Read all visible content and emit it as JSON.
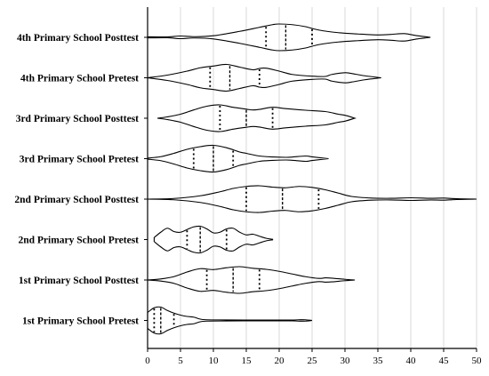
{
  "chart_data": {
    "type": "violin",
    "orientation": "horizontal",
    "grid": true,
    "xlim": [
      0,
      50
    ],
    "xticks": [
      0,
      5,
      10,
      15,
      20,
      25,
      30,
      35,
      40,
      45,
      50
    ],
    "categories": [
      "4th Primary School Posttest",
      "4th Primary School Pretest",
      "3rd Primary School Posttest",
      "3rd Primary School Pretest",
      "2nd Primary School Posttest",
      "2nd Primary School Pretest",
      "1st Primary School Posttest",
      "1st Primary School Pretest"
    ],
    "violins": [
      {
        "category": "4th Primary School Posttest",
        "min": 0,
        "max": 43,
        "q1": 18,
        "median": 21,
        "q3": 25,
        "density": [
          [
            0,
            0.04
          ],
          [
            3,
            0.03
          ],
          [
            5,
            0.1
          ],
          [
            7,
            0.05
          ],
          [
            10,
            0.12
          ],
          [
            14,
            0.45
          ],
          [
            17,
            0.75
          ],
          [
            19,
            0.95
          ],
          [
            20,
            1.0
          ],
          [
            22,
            0.95
          ],
          [
            24,
            0.8
          ],
          [
            26,
            0.55
          ],
          [
            29,
            0.35
          ],
          [
            32,
            0.25
          ],
          [
            35,
            0.18
          ],
          [
            37,
            0.22
          ],
          [
            39,
            0.28
          ],
          [
            41,
            0.12
          ],
          [
            43,
            0
          ]
        ]
      },
      {
        "category": "4th Primary School Pretest",
        "min": 0,
        "max": 35.5,
        "q1": 9.5,
        "median": 12.5,
        "q3": 17,
        "density": [
          [
            0,
            0
          ],
          [
            3,
            0.2
          ],
          [
            6,
            0.5
          ],
          [
            8,
            0.75
          ],
          [
            10,
            0.88
          ],
          [
            12,
            1.0
          ],
          [
            14,
            0.8
          ],
          [
            16,
            0.6
          ],
          [
            17,
            0.7
          ],
          [
            18,
            0.72
          ],
          [
            20,
            0.5
          ],
          [
            22,
            0.25
          ],
          [
            25,
            0.12
          ],
          [
            27,
            0.1
          ],
          [
            28,
            0.25
          ],
          [
            30,
            0.38
          ],
          [
            31,
            0.32
          ],
          [
            33,
            0.15
          ],
          [
            35.5,
            0
          ]
        ]
      },
      {
        "category": "3rd Primary School Posttest",
        "min": 1.5,
        "max": 31.5,
        "q1": 11,
        "median": 15,
        "q3": 19,
        "density": [
          [
            1.5,
            0
          ],
          [
            3,
            0.1
          ],
          [
            5,
            0.3
          ],
          [
            7,
            0.62
          ],
          [
            9,
            0.9
          ],
          [
            11,
            1.0
          ],
          [
            13,
            0.82
          ],
          [
            15,
            0.68
          ],
          [
            16,
            0.62
          ],
          [
            17,
            0.66
          ],
          [
            19,
            0.82
          ],
          [
            21,
            0.72
          ],
          [
            24,
            0.6
          ],
          [
            27,
            0.5
          ],
          [
            29,
            0.3
          ],
          [
            30,
            0.22
          ],
          [
            31.5,
            0
          ]
        ]
      },
      {
        "category": "3rd Primary School Pretest",
        "min": 0,
        "max": 27.5,
        "q1": 7,
        "median": 10,
        "q3": 13,
        "density": [
          [
            0,
            0.04
          ],
          [
            2,
            0.15
          ],
          [
            4,
            0.4
          ],
          [
            6,
            0.7
          ],
          [
            8,
            0.9
          ],
          [
            10,
            1.0
          ],
          [
            12,
            0.82
          ],
          [
            14,
            0.5
          ],
          [
            15,
            0.4
          ],
          [
            17,
            0.2
          ],
          [
            19,
            0.13
          ],
          [
            21,
            0.1
          ],
          [
            22,
            0.12
          ],
          [
            24,
            0.2
          ],
          [
            25,
            0.14
          ],
          [
            27.5,
            0
          ]
        ]
      },
      {
        "category": "2nd Primary School Posttest",
        "min": 0,
        "max": 50,
        "q1": 15,
        "median": 20.5,
        "q3": 26,
        "density": [
          [
            0,
            0
          ],
          [
            4,
            0.05
          ],
          [
            8,
            0.25
          ],
          [
            11,
            0.55
          ],
          [
            13,
            0.8
          ],
          [
            15,
            0.95
          ],
          [
            17,
            1.0
          ],
          [
            19,
            0.9
          ],
          [
            21,
            0.85
          ],
          [
            23,
            0.95
          ],
          [
            25,
            0.88
          ],
          [
            27,
            0.7
          ],
          [
            29,
            0.45
          ],
          [
            31,
            0.2
          ],
          [
            34,
            0.08
          ],
          [
            37,
            0.06
          ],
          [
            40,
            0.1
          ],
          [
            43,
            0.06
          ],
          [
            45,
            0.08
          ],
          [
            47,
            0.03
          ],
          [
            50,
            0
          ]
        ]
      },
      {
        "category": "2nd Primary School Pretest",
        "min": 1,
        "max": 19,
        "q1": 6,
        "median": 8,
        "q3": 12,
        "density": [
          [
            1,
            0.15
          ],
          [
            2,
            0.55
          ],
          [
            3,
            0.85
          ],
          [
            4,
            0.6
          ],
          [
            5,
            0.55
          ],
          [
            6,
            0.75
          ],
          [
            7,
            0.95
          ],
          [
            8,
            1.0
          ],
          [
            9,
            0.8
          ],
          [
            10,
            0.5
          ],
          [
            11,
            0.55
          ],
          [
            12,
            0.8
          ],
          [
            13,
            0.85
          ],
          [
            14,
            0.55
          ],
          [
            15,
            0.35
          ],
          [
            16,
            0.4
          ],
          [
            17,
            0.25
          ],
          [
            18,
            0.1
          ],
          [
            19,
            0.02
          ]
        ]
      },
      {
        "category": "1st Primary School Posttest",
        "min": 0,
        "max": 31.5,
        "q1": 9,
        "median": 13,
        "q3": 17,
        "density": [
          [
            0,
            0
          ],
          [
            2,
            0.08
          ],
          [
            4,
            0.25
          ],
          [
            6,
            0.6
          ],
          [
            8,
            0.85
          ],
          [
            10,
            0.78
          ],
          [
            12,
            0.92
          ],
          [
            14,
            1.0
          ],
          [
            16,
            0.88
          ],
          [
            18,
            0.8
          ],
          [
            20,
            0.65
          ],
          [
            22,
            0.45
          ],
          [
            24,
            0.25
          ],
          [
            26,
            0.12
          ],
          [
            27,
            0.16
          ],
          [
            28,
            0.14
          ],
          [
            30,
            0.05
          ],
          [
            31.5,
            0
          ]
        ]
      },
      {
        "category": "1st Primary School Pretest",
        "min": 0,
        "max": 25,
        "q1": 1,
        "median": 2,
        "q3": 4,
        "density": [
          [
            0,
            0.6
          ],
          [
            1,
            0.95
          ],
          [
            2,
            1.0
          ],
          [
            3,
            0.75
          ],
          [
            4,
            0.55
          ],
          [
            5,
            0.4
          ],
          [
            6,
            0.3
          ],
          [
            7,
            0.25
          ],
          [
            8,
            0.1
          ],
          [
            9,
            0.05
          ],
          [
            12,
            0.04
          ],
          [
            16,
            0.03
          ],
          [
            20,
            0.03
          ],
          [
            22,
            0.03
          ],
          [
            23,
            0.05
          ],
          [
            24,
            0.05
          ],
          [
            25,
            0
          ]
        ]
      }
    ]
  }
}
